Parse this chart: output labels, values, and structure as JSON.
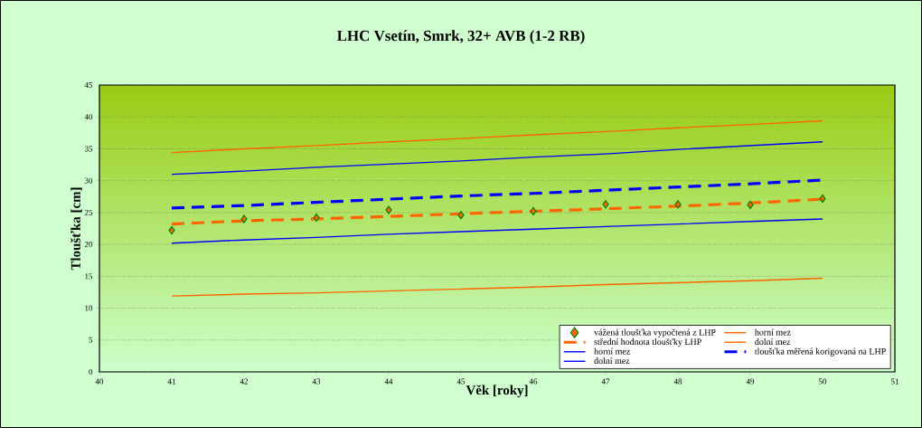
{
  "chart_data": {
    "type": "line",
    "title": "LHC Vsetín, Smrk, 32+ AVB (1-2 RB)",
    "xlabel": "Věk [roky]",
    "ylabel": "Tloušťka [cm]",
    "x": [
      41,
      42,
      43,
      44,
      45,
      46,
      47,
      48,
      49,
      50
    ],
    "xlim": [
      40,
      51
    ],
    "xticks": [
      40,
      41,
      42,
      43,
      44,
      45,
      46,
      47,
      48,
      49,
      50,
      51
    ],
    "ylim": [
      0,
      45
    ],
    "yticks": [
      0,
      5,
      10,
      15,
      20,
      25,
      30,
      35,
      40,
      45
    ],
    "grid": "y",
    "legend": "bottom right",
    "series": [
      {
        "name": "vážená tloušťka vypočtená z LHP",
        "type": "scatter",
        "marker": "diamond",
        "color": "#ff6600",
        "values": [
          22.2,
          24.0,
          24.2,
          25.4,
          24.6,
          25.2,
          26.3,
          26.3,
          26.2,
          27.2
        ]
      },
      {
        "name": "horní mez",
        "type": "line",
        "line_style": "solid",
        "color": "#ff6600",
        "values": [
          34.4,
          35.0,
          35.5,
          36.1,
          36.6,
          37.2,
          37.7,
          38.3,
          38.8,
          39.4
        ]
      },
      {
        "name": "střední hodnota tloušťky LHP",
        "type": "line",
        "line_style": "dashed",
        "color": "#ff6600",
        "values": [
          23.2,
          23.7,
          24.0,
          24.4,
          24.8,
          25.2,
          25.6,
          26.0,
          26.5,
          27.1
        ]
      },
      {
        "name": "dolní mez",
        "type": "line",
        "line_style": "solid",
        "color": "#ff6600",
        "values": [
          11.9,
          12.2,
          12.4,
          12.7,
          13.0,
          13.3,
          13.7,
          14.0,
          14.3,
          14.7
        ]
      },
      {
        "name": "horní mez",
        "type": "line",
        "line_style": "solid",
        "color": "#0000ff",
        "values": [
          31.0,
          31.5,
          32.1,
          32.6,
          33.1,
          33.7,
          34.2,
          34.9,
          35.5,
          36.1
        ]
      },
      {
        "name": "tloušťka měřená korigovaná na LHP",
        "type": "line",
        "line_style": "dashed",
        "color": "#0000ff",
        "values": [
          25.7,
          26.1,
          26.6,
          27.1,
          27.6,
          28.0,
          28.5,
          29.0,
          29.5,
          30.1
        ]
      },
      {
        "name": "dolní mez",
        "type": "line",
        "line_style": "solid",
        "color": "#0000ff",
        "values": [
          20.2,
          20.7,
          21.1,
          21.6,
          22.0,
          22.4,
          22.8,
          23.2,
          23.6,
          24.0
        ]
      }
    ]
  }
}
